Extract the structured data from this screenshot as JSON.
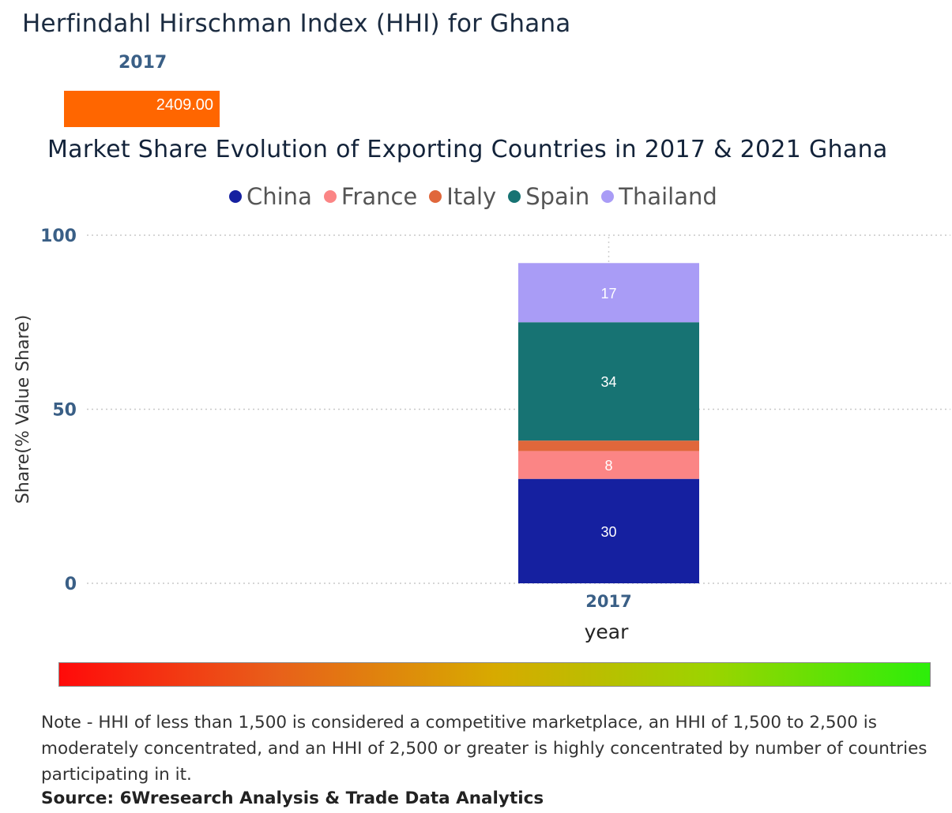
{
  "hhi": {
    "title": "Herfindahl Hirschman Index (HHI) for Ghana",
    "year": "2017",
    "value": "2409.00",
    "value_color": "#ff6600"
  },
  "chart_data": {
    "type": "bar",
    "stacked": true,
    "title": "Market Share Evolution of Exporting Countries in 2017 & 2021 Ghana",
    "xlabel": "year",
    "ylabel": "Share(% Value Share)",
    "ylim": [
      0,
      100
    ],
    "yticks": [
      "0",
      "50",
      "100"
    ],
    "grid": true,
    "legend_position": "top-center",
    "categories": [
      "2017"
    ],
    "series": [
      {
        "name": "China",
        "color": "#1520a0",
        "values": [
          30
        ],
        "label": "30"
      },
      {
        "name": "France",
        "color": "#fb8585",
        "values": [
          8
        ],
        "label": "8"
      },
      {
        "name": "Italy",
        "color": "#e0673b",
        "values": [
          3
        ],
        "label": ""
      },
      {
        "name": "Spain",
        "color": "#177373",
        "values": [
          34
        ],
        "label": "34"
      },
      {
        "name": "Thailand",
        "color": "#a99cf6",
        "values": [
          17
        ],
        "label": "17"
      }
    ]
  },
  "scale": {
    "gradient_colors": [
      "#ff0a0a",
      "#e8601a",
      "#d7aa00",
      "#9bd400",
      "#2cee0a"
    ]
  },
  "note": "Note - HHI of less than 1,500 is considered a competitive marketplace, an HHI of 1,500 to 2,500 is moderately concentrated, and an HHI of 2,500 or greater is highly concentrated by number of countries participating in it.",
  "source": "Source: 6Wresearch Analysis & Trade Data Analytics"
}
